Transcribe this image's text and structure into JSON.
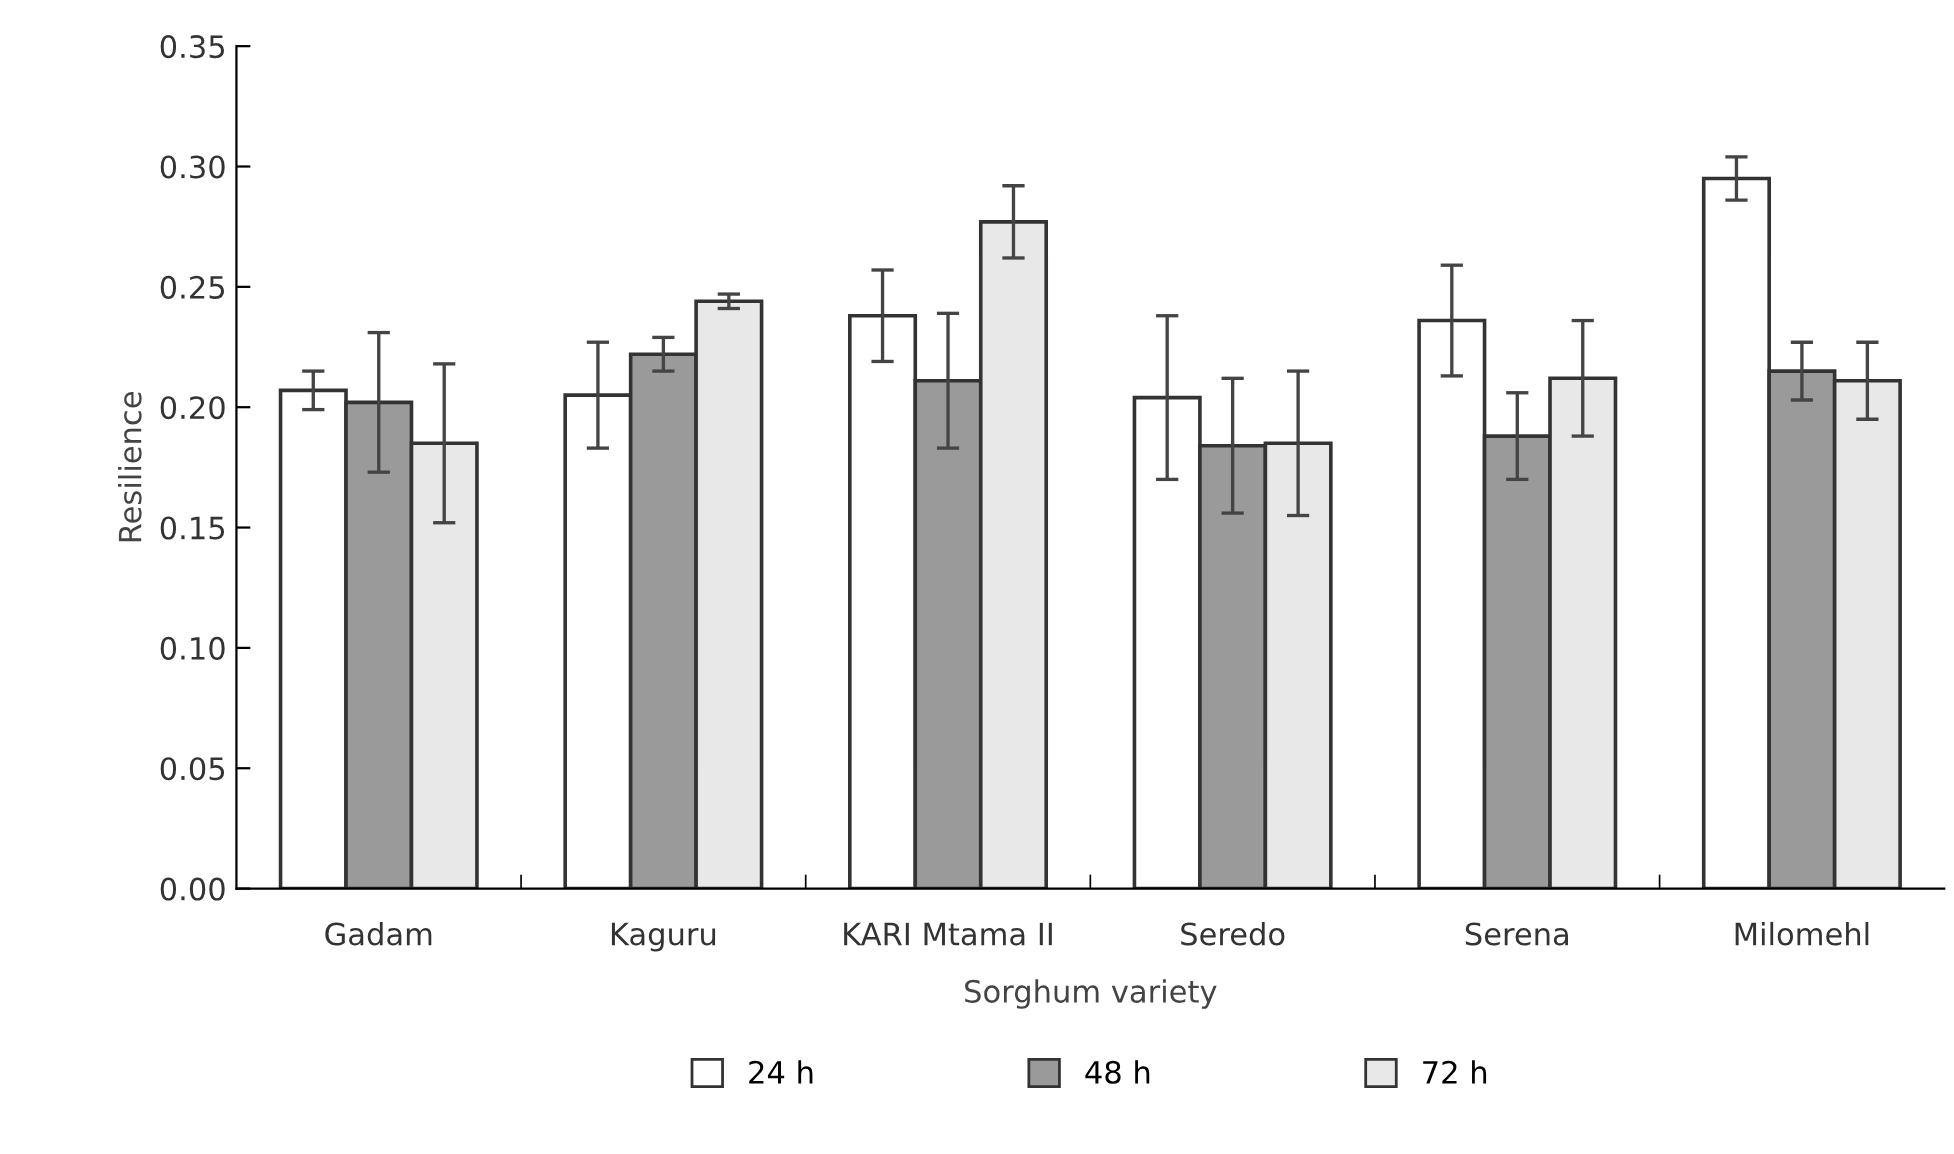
{
  "chart_data": {
    "type": "bar",
    "xlabel": "Sorghum variety",
    "ylabel": "Resilience",
    "categories": [
      "Gadam",
      "Kaguru",
      "KARI Mtama II",
      "Seredo",
      "Serena",
      "Milomehl"
    ],
    "series": [
      {
        "name": "24 h",
        "color": "#ffffff",
        "values": [
          0.207,
          0.205,
          0.238,
          0.204,
          0.236,
          0.295
        ],
        "errors": [
          0.008,
          0.022,
          0.019,
          0.034,
          0.023,
          0.009
        ]
      },
      {
        "name": "48 h",
        "color": "#9a9a9a",
        "values": [
          0.202,
          0.222,
          0.211,
          0.184,
          0.188,
          0.215
        ],
        "errors": [
          0.029,
          0.007,
          0.028,
          0.028,
          0.018,
          0.012
        ]
      },
      {
        "name": "72 h",
        "color": "#e8e8e8",
        "values": [
          0.185,
          0.244,
          0.277,
          0.185,
          0.212,
          0.211
        ],
        "errors": [
          0.033,
          0.003,
          0.015,
          0.03,
          0.024,
          0.016
        ]
      }
    ],
    "ylim": [
      0,
      0.35
    ],
    "yticks": [
      {
        "value": 0,
        "label": "0.00"
      },
      {
        "value": 0.05,
        "label": "0.05"
      },
      {
        "value": 0.1,
        "label": "0.10"
      },
      {
        "value": 0.15,
        "label": "0.15"
      },
      {
        "value": 0.2,
        "label": "0.20"
      },
      {
        "value": 0.25,
        "label": "0.25"
      },
      {
        "value": 0.3,
        "label": "0.30"
      },
      {
        "value": 0.35,
        "label": "0.35"
      }
    ],
    "grid": false,
    "legend": "bottom"
  }
}
